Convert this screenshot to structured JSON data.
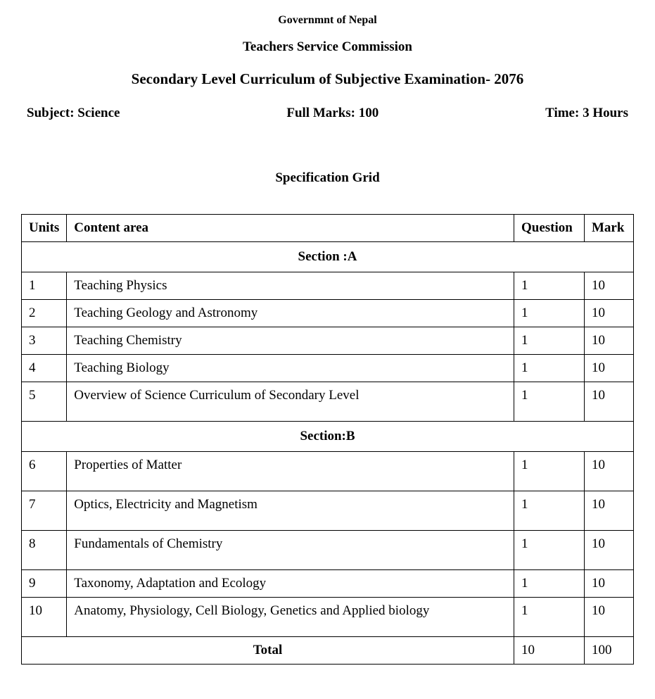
{
  "header": {
    "line1": "Governmnt of Nepal",
    "line2": "Teachers Service Commission",
    "line3": "Secondary Level Curriculum of Subjective Examination- 2076"
  },
  "info": {
    "subject": "Subject: Science",
    "fullMarks": "Full Marks: 100",
    "time": "Time: 3 Hours"
  },
  "gridTitle": "Specification Grid",
  "table": {
    "headers": {
      "units": "Units",
      "content": "Content area",
      "question": "Question",
      "mark": "Mark"
    },
    "sectionA": "Section :A",
    "sectionB": "Section:B",
    "rowsA": [
      {
        "unit": "1",
        "content": "Teaching Physics",
        "question": "1",
        "mark": "10"
      },
      {
        "unit": "2",
        "content": "Teaching Geology and Astronomy",
        "question": "1",
        "mark": "10"
      },
      {
        "unit": "3",
        "content": "Teaching Chemistry",
        "question": "1",
        "mark": "10"
      },
      {
        "unit": "4",
        "content": "Teaching Biology",
        "question": "1",
        "mark": "10"
      },
      {
        "unit": "5",
        "content": "Overview of Science Curriculum of Secondary Level",
        "question": "1",
        "mark": "10"
      }
    ],
    "rowsB": [
      {
        "unit": "6",
        "content": "Properties of Matter",
        "question": "1",
        "mark": "10"
      },
      {
        "unit": "7",
        "content": "Optics, Electricity and Magnetism",
        "question": "1",
        "mark": "10"
      },
      {
        "unit": "8",
        "content": "Fundamentals of Chemistry",
        "question": "1",
        "mark": "10"
      },
      {
        "unit": "9",
        "content": "Taxonomy, Adaptation and Ecology",
        "question": "1",
        "mark": "10"
      },
      {
        "unit": "10",
        "content": "Anatomy, Physiology, Cell Biology, Genetics  and Applied biology",
        "question": "1",
        "mark": "10"
      }
    ],
    "total": {
      "label": "Total",
      "question": "10",
      "mark": "100"
    }
  },
  "styling": {
    "backgroundColor": "#ffffff",
    "textColor": "#000000",
    "borderColor": "#000000",
    "fontFamily": "Times New Roman",
    "bodyFontSize": 19,
    "widths": {
      "units": 60,
      "question": 100,
      "mark": 70
    }
  }
}
